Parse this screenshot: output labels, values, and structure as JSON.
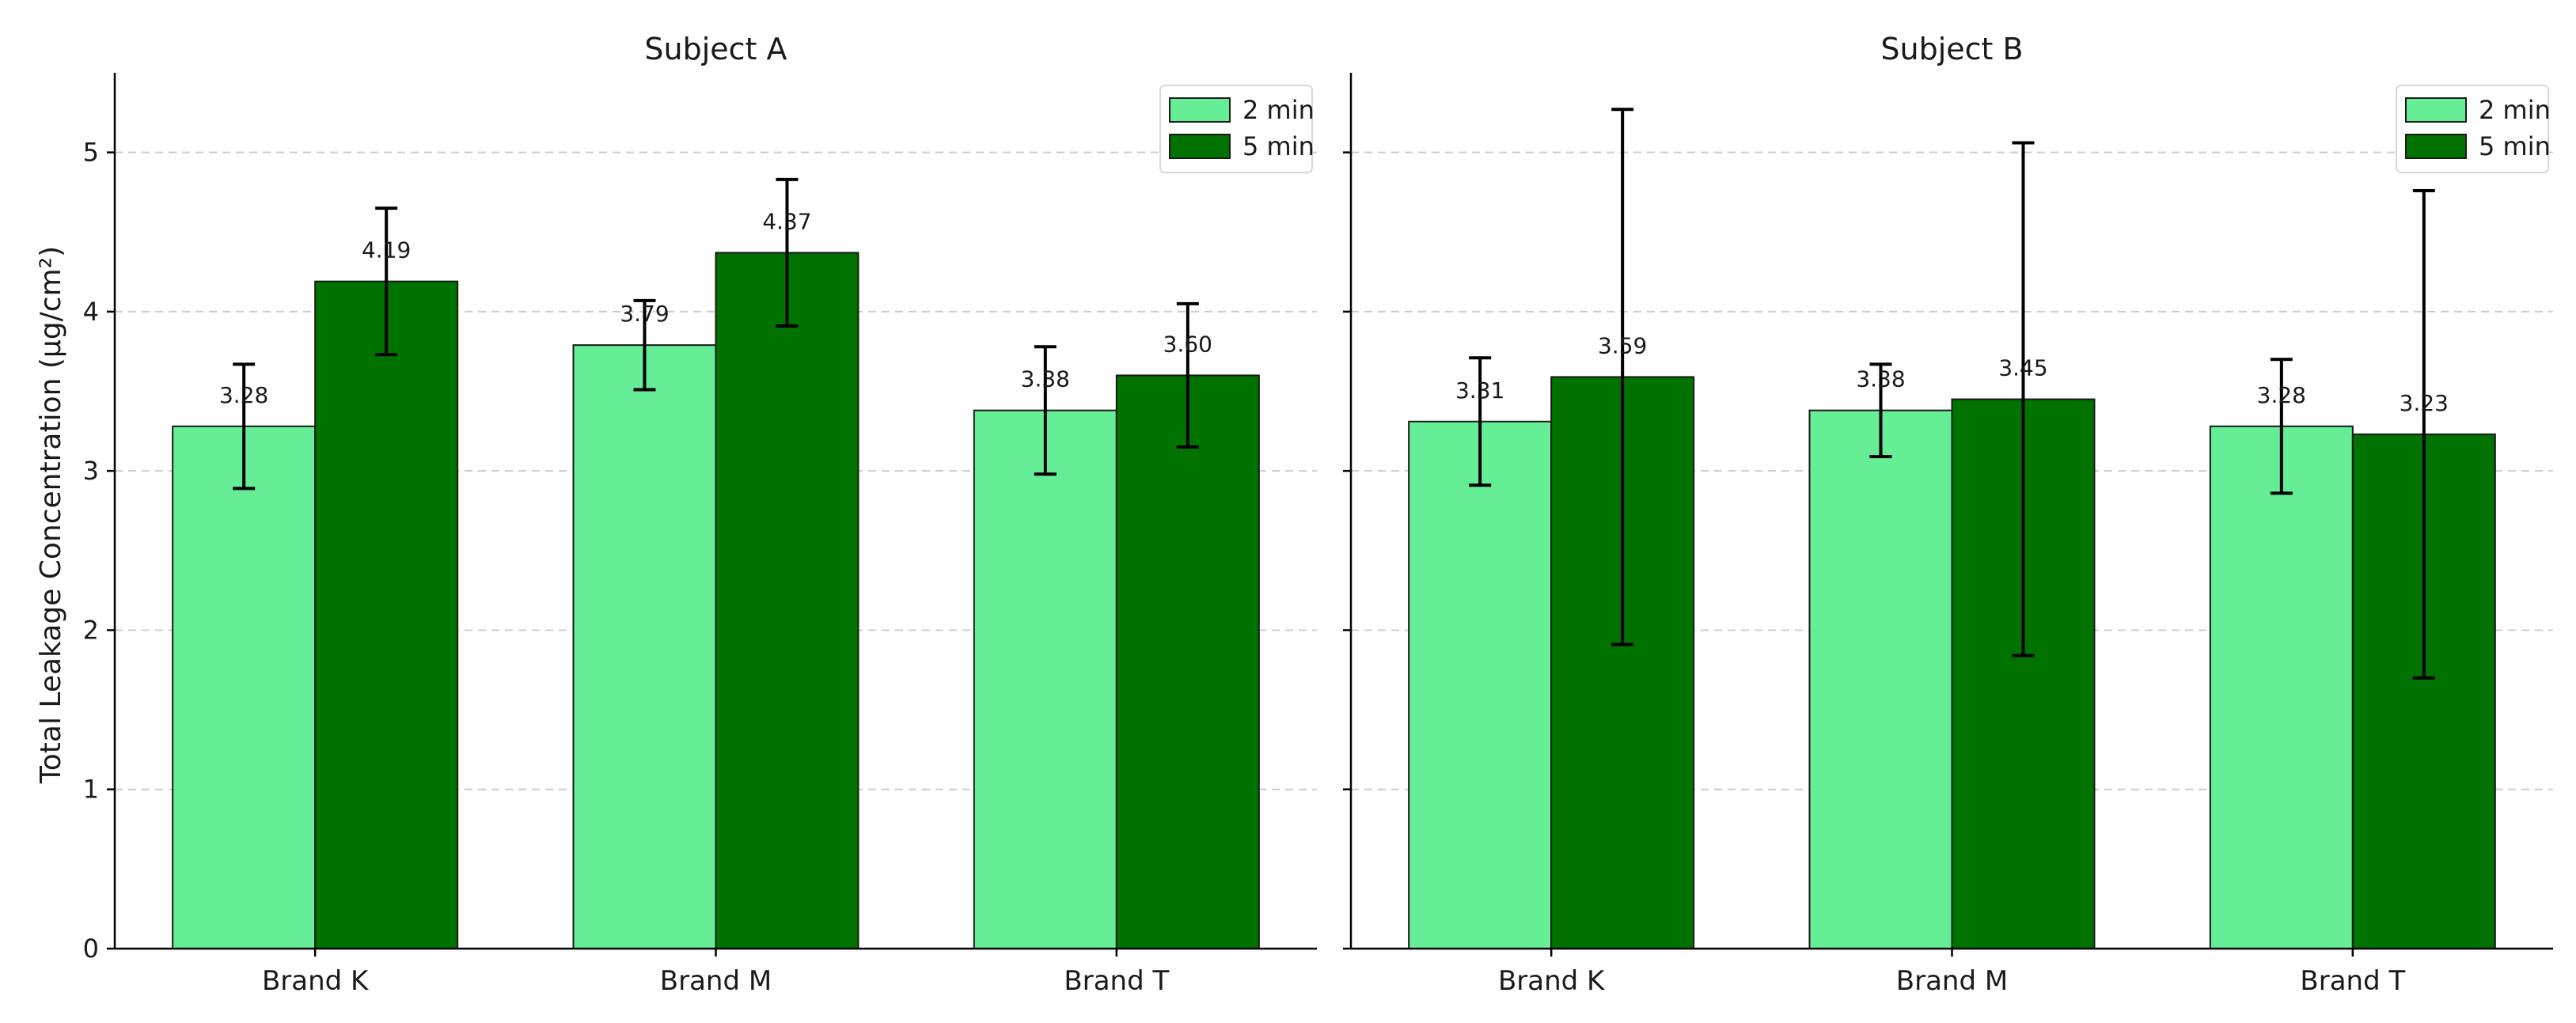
{
  "chart_data": {
    "type": "bar",
    "ylabel": "Total Leakage Concentration (µg/cm²)",
    "ylim": [
      0,
      5.5
    ],
    "yticks": [
      "0",
      "1",
      "2",
      "3",
      "4",
      "5"
    ],
    "grid": "y-dashed",
    "legend_position": "top-right",
    "colors": {
      "2 min": "#66ee96",
      "5 min": "#007200",
      "edge": "#1a1a1a",
      "grid": "#cccccc"
    },
    "panels": [
      {
        "title": "Subject A",
        "categories": [
          "Brand K",
          "Brand M",
          "Brand T"
        ],
        "series": [
          {
            "name": "2 min",
            "values": [
              3.28,
              3.79,
              3.38
            ],
            "errors": [
              0.39,
              0.28,
              0.4
            ],
            "labels": [
              "3.28",
              "3.79",
              "3.38"
            ]
          },
          {
            "name": "5 min",
            "values": [
              4.19,
              4.37,
              3.6
            ],
            "errors": [
              0.46,
              0.46,
              0.45
            ],
            "labels": [
              "4.19",
              "4.37",
              "3.60"
            ]
          }
        ]
      },
      {
        "title": "Subject B",
        "categories": [
          "Brand K",
          "Brand M",
          "Brand T"
        ],
        "series": [
          {
            "name": "2 min",
            "values": [
              3.31,
              3.38,
              3.28
            ],
            "errors": [
              0.4,
              0.29,
              0.42
            ],
            "labels": [
              "3.31",
              "3.38",
              "3.28"
            ]
          },
          {
            "name": "5 min",
            "values": [
              3.59,
              3.45,
              3.23
            ],
            "errors": [
              1.68,
              1.61,
              1.53
            ],
            "labels": [
              "3.59",
              "3.45",
              "3.23"
            ]
          }
        ]
      }
    ]
  }
}
